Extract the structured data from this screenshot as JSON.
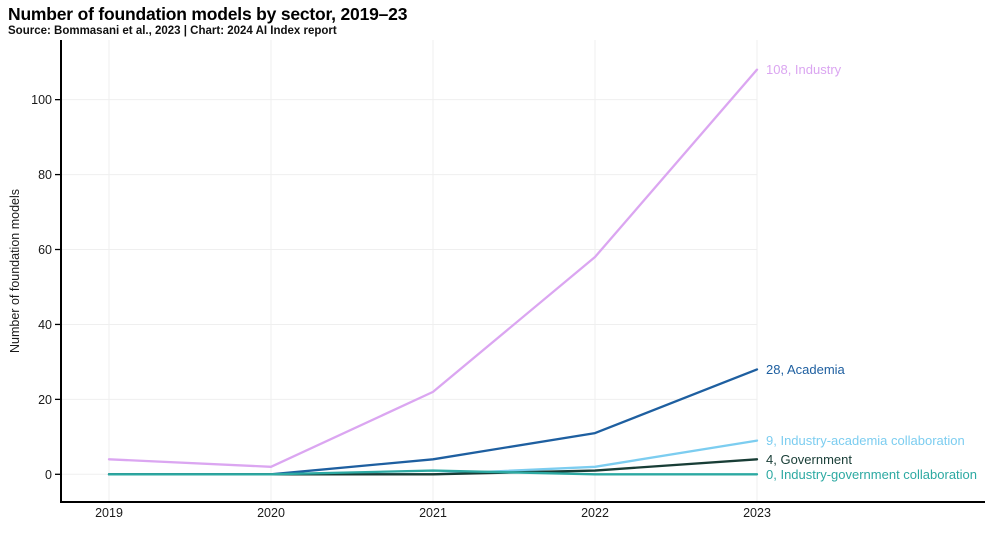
{
  "header": {
    "title": "Number of foundation models by sector, 2019–23",
    "subtitle": "Source: Bommasani et al., 2023 | Chart: 2024 AI Index report"
  },
  "chart_data": {
    "type": "line",
    "title": "Number of foundation models by sector, 2019–23",
    "source": "Source: Bommasani et al., 2023 | Chart: 2024 AI Index report",
    "x": [
      2019,
      2020,
      2021,
      2022,
      2023
    ],
    "series": [
      {
        "name": "Industry",
        "values": [
          4,
          2,
          22,
          58,
          108
        ],
        "color": "#DBA6F1",
        "end_label": "108, Industry"
      },
      {
        "name": "Academia",
        "values": [
          0,
          0,
          4,
          11,
          28
        ],
        "color": "#1E5FA0",
        "end_label": "28, Academia"
      },
      {
        "name": "Industry-academia collaboration",
        "values": [
          0,
          0,
          0,
          2,
          9
        ],
        "color": "#7CCDF0",
        "end_label": "9, Industry-academia collaboration"
      },
      {
        "name": "Government",
        "values": [
          0,
          0,
          0,
          1,
          4
        ],
        "color": "#183D36",
        "end_label": "4, Government"
      },
      {
        "name": "Industry-government collaboration",
        "values": [
          0,
          0,
          1,
          0,
          0
        ],
        "color": "#2CA9A2",
        "end_label": "0, Industry-government collaboration"
      }
    ],
    "xlabel": "",
    "ylabel": "Number of foundation models",
    "yticks": [
      0,
      20,
      40,
      60,
      80,
      100
    ],
    "ylim": [
      0,
      116
    ],
    "grid": true,
    "legend_position": "line-end labels, right side",
    "colors": {
      "grid": "#EFEFEF",
      "axis": "#000000",
      "tick_text": "#1A1A1A"
    }
  }
}
